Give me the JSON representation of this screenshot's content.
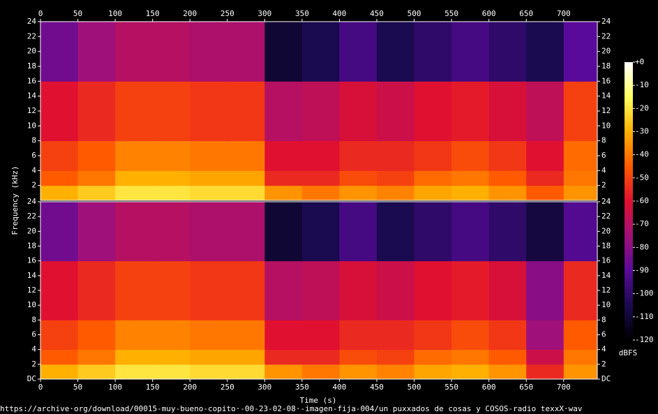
{
  "chart_data": {
    "type": "heatmap",
    "xlabel": "Time (s)",
    "ylabel": "Frequency (kHz)",
    "caption": "https://archive·org/download/00015-muy-bueno-copito·-00-23-02-08·-imagen-fija-004/un puxxados de cosas y COSOS-radio texxX·wav",
    "xlim": [
      0,
      745
    ],
    "xticks": [
      0,
      50,
      100,
      150,
      200,
      250,
      300,
      350,
      400,
      450,
      500,
      550,
      600,
      650,
      700
    ],
    "x_edges": [
      0,
      50,
      100,
      150,
      200,
      250,
      300,
      350,
      400,
      450,
      500,
      550,
      600,
      650,
      700,
      745
    ],
    "ylim": [
      0,
      24
    ],
    "y_edges": [
      0,
      2,
      4,
      8,
      16,
      24
    ],
    "zlim": [
      -120,
      0
    ],
    "colormap": [
      "#000000",
      "#1a0a50",
      "#5a0a9a",
      "#a0107a",
      "#e01030",
      "#ff5a00",
      "#ffb000",
      "#ffff60",
      "#ffffff"
    ],
    "panels": [
      {
        "yticks": [
          2,
          4,
          6,
          8,
          10,
          12,
          14,
          16,
          18,
          20,
          22,
          24
        ],
        "z": [
          [
            -30,
            -25,
            -20,
            -20,
            -22,
            -22,
            -35,
            -40,
            -35,
            -38,
            -32,
            -30,
            -35,
            -45,
            -35
          ],
          [
            -45,
            -40,
            -30,
            -30,
            -32,
            -32,
            -55,
            -55,
            -48,
            -50,
            -42,
            -40,
            -45,
            -55,
            -40
          ],
          [
            -50,
            -45,
            -38,
            -38,
            -40,
            -40,
            -60,
            -60,
            -55,
            -55,
            -52,
            -48,
            -52,
            -60,
            -42
          ],
          [
            -60,
            -55,
            -50,
            -50,
            -52,
            -52,
            -70,
            -68,
            -62,
            -65,
            -60,
            -58,
            -62,
            -68,
            -50
          ],
          [
            -85,
            -75,
            -70,
            -70,
            -72,
            -72,
            -110,
            -105,
            -95,
            -105,
            -100,
            -95,
            -100,
            -105,
            -90
          ]
        ]
      },
      {
        "yticks": [
          {
            "value": 0,
            "label": "DC"
          },
          2,
          4,
          6,
          8,
          10,
          12,
          14,
          16,
          18,
          20,
          22,
          24
        ],
        "z": [
          [
            -30,
            -25,
            -20,
            -20,
            -22,
            -22,
            -35,
            -40,
            -35,
            -38,
            -32,
            -30,
            -35,
            -55,
            -35
          ],
          [
            -45,
            -40,
            -30,
            -30,
            -32,
            -32,
            -55,
            -55,
            -48,
            -50,
            -42,
            -40,
            -45,
            -65,
            -40
          ],
          [
            -50,
            -45,
            -38,
            -38,
            -40,
            -40,
            -60,
            -60,
            -55,
            -55,
            -52,
            -48,
            -52,
            -75,
            -45
          ],
          [
            -60,
            -55,
            -50,
            -50,
            -52,
            -52,
            -70,
            -68,
            -62,
            -65,
            -60,
            -58,
            -62,
            -80,
            -55
          ],
          [
            -85,
            -75,
            -70,
            -70,
            -72,
            -72,
            -110,
            -105,
            -95,
            -105,
            -100,
            -95,
            -100,
            -108,
            -92
          ]
        ]
      }
    ],
    "colorbar": {
      "label": "dBFS",
      "ticks": [
        {
          "value": 0,
          "label": "+0"
        },
        -10,
        -20,
        -30,
        -40,
        -50,
        -60,
        -70,
        -80,
        -90,
        -100,
        -110,
        -120
      ]
    }
  }
}
